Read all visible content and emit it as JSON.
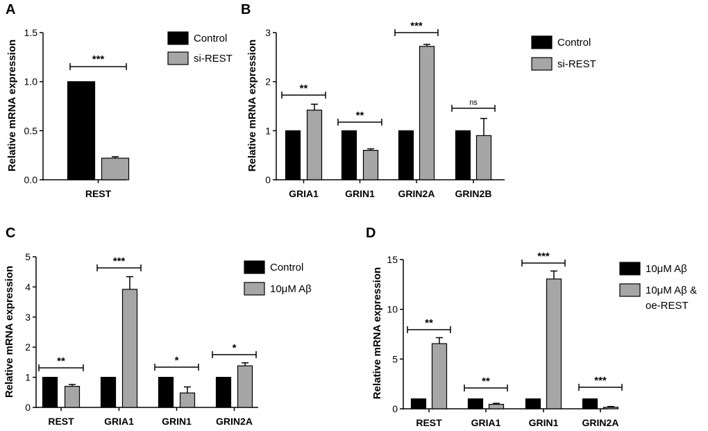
{
  "chart_data": [
    {
      "panel": "A",
      "type": "bar",
      "ylabel": "Relative mRNA expression",
      "ylim": [
        0,
        1.5
      ],
      "yticks": [
        "0.0",
        "0.5",
        "1.0",
        "1.5"
      ],
      "categories": [
        "REST"
      ],
      "series": [
        {
          "name": "Control",
          "values": [
            1.0
          ],
          "errors": [
            0
          ],
          "color": "#000000"
        },
        {
          "name": "si-REST",
          "values": [
            0.22
          ],
          "errors": [
            0.015
          ],
          "color": "#a6a6a6"
        }
      ],
      "significance": [
        "***"
      ],
      "legend_position": "right"
    },
    {
      "panel": "B",
      "type": "bar",
      "ylabel": "Relative mRNA expression",
      "ylim": [
        0,
        3
      ],
      "yticks": [
        "0",
        "1",
        "2",
        "3"
      ],
      "categories": [
        "GRIA1",
        "GRIN1",
        "GRIN2A",
        "GRIN2B"
      ],
      "series": [
        {
          "name": "Control",
          "values": [
            1.0,
            1.0,
            1.0,
            1.0
          ],
          "errors": [
            0,
            0,
            0,
            0
          ],
          "color": "#000000"
        },
        {
          "name": "si-REST",
          "values": [
            1.42,
            0.6,
            2.72,
            0.9
          ],
          "errors": [
            0.12,
            0.03,
            0.04,
            0.35
          ],
          "color": "#a6a6a6"
        }
      ],
      "significance": [
        "**",
        "**",
        "***",
        "ns"
      ],
      "legend_position": "right"
    },
    {
      "panel": "C",
      "type": "bar",
      "ylabel": "Relative mRNA expression",
      "ylim": [
        0,
        5
      ],
      "yticks": [
        "0",
        "1",
        "2",
        "3",
        "4",
        "5"
      ],
      "categories": [
        "REST",
        "GRIA1",
        "GRIN1",
        "GRIN2A"
      ],
      "series": [
        {
          "name": "Control",
          "values": [
            1.0,
            1.0,
            1.0,
            1.0
          ],
          "errors": [
            0,
            0,
            0,
            0
          ],
          "color": "#000000"
        },
        {
          "name": "10μM Aβ",
          "values": [
            0.7,
            3.92,
            0.48,
            1.38
          ],
          "errors": [
            0.06,
            0.42,
            0.2,
            0.1
          ],
          "color": "#a6a6a6"
        }
      ],
      "significance": [
        "**",
        "***",
        "*",
        "*"
      ],
      "legend_position": "right"
    },
    {
      "panel": "D",
      "type": "bar",
      "ylabel": "Relative mRNA expression",
      "ylim": [
        0,
        15
      ],
      "yticks": [
        "0",
        "5",
        "10",
        "15"
      ],
      "categories": [
        "REST",
        "GRIA1",
        "GRIN1",
        "GRIN2A"
      ],
      "series": [
        {
          "name": "10μM Aβ",
          "values": [
            1.0,
            1.0,
            1.0,
            1.0
          ],
          "errors": [
            0,
            0,
            0,
            0
          ],
          "color": "#000000"
        },
        {
          "name": "10μM Aβ & oe-REST",
          "legend_lines": [
            "10μM Aβ &",
            "oe-REST"
          ],
          "values": [
            6.55,
            0.45,
            13.05,
            0.15
          ],
          "errors": [
            0.6,
            0.1,
            0.8,
            0.08
          ],
          "color": "#a6a6a6"
        }
      ],
      "significance": [
        "**",
        "**",
        "***",
        "***"
      ],
      "legend_position": "right"
    }
  ]
}
